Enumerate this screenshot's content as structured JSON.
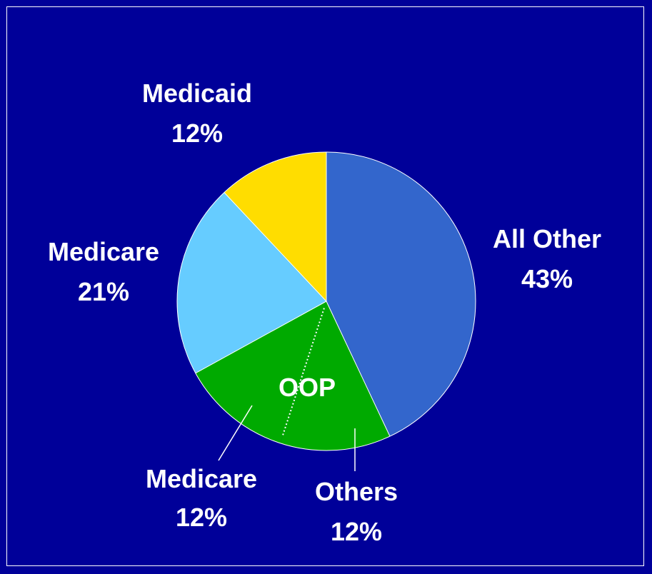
{
  "chart_data": {
    "type": "pie",
    "start_angle_deg": 0,
    "direction": "clockwise",
    "slices": [
      {
        "label": "All Other",
        "value": 43,
        "value_label": "43%",
        "color": "#3366cc"
      },
      {
        "label": "Others",
        "value": 12,
        "value_label": "12%",
        "color": "#00aa00",
        "group": "OOP"
      },
      {
        "label": "Medicare",
        "value": 12,
        "value_label": "12%",
        "color": "#00aa00",
        "group": "OOP"
      },
      {
        "label": "Medicare",
        "value": 21,
        "value_label": "21%",
        "color": "#66ccff"
      },
      {
        "label": "Medicaid",
        "value": 12,
        "value_label": "12%",
        "color": "#ffdd00"
      }
    ],
    "group_label": "OOP",
    "background": "#000099"
  }
}
